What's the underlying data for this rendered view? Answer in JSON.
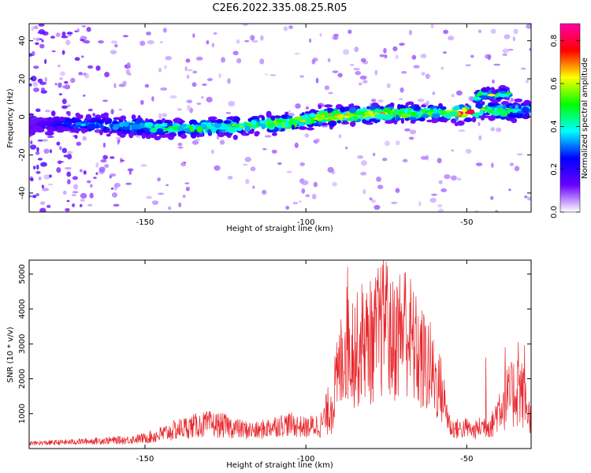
{
  "figure": {
    "title": "C2E6.2022.335.08.25.R05"
  },
  "chart_data": [
    {
      "type": "heatmap",
      "xlabel": "Height of straight line (km)",
      "ylabel": "Frequency (Hz)",
      "xlim": [
        -186,
        -30
      ],
      "ylim": [
        -50,
        49
      ],
      "xticks": [
        -150,
        -100,
        -50
      ],
      "yticks": [
        -40,
        -20,
        0,
        20,
        40
      ],
      "colorbar": {
        "label": "Normalized spectral amplitude",
        "range": [
          0,
          0.88
        ],
        "ticks": [
          0.0,
          0.2,
          0.4,
          0.6,
          0.8
        ],
        "colors": [
          "#ffffff",
          "#6a00ff",
          "#0000ff",
          "#00ffff",
          "#00ff00",
          "#ffff00",
          "#ff0000",
          "#ff00aa"
        ]
      },
      "ridge": {
        "x": [
          -186,
          -175,
          -165,
          -155,
          -145,
          -135,
          -125,
          -115,
          -105,
          -95,
          -85,
          -75,
          -65,
          -60,
          -55,
          -50,
          -45,
          -40,
          -35,
          -30
        ],
        "center_hz": [
          -4,
          -4,
          -4,
          -5,
          -6,
          -6,
          -5,
          -4,
          -3,
          0,
          1,
          2,
          2,
          2,
          2,
          2,
          4,
          3,
          3,
          4
        ],
        "peak_amplitude": [
          0.15,
          0.3,
          0.35,
          0.45,
          0.45,
          0.5,
          0.55,
          0.5,
          0.6,
          0.7,
          0.6,
          0.65,
          0.6,
          0.5,
          0.6,
          0.85,
          0.5,
          0.55,
          0.45,
          0.4
        ]
      },
      "upper_branch": {
        "x": [
          -47,
          -45,
          -43,
          -41,
          -39,
          -37
        ],
        "center_hz": [
          10,
          12,
          12,
          11,
          12,
          12
        ],
        "peak_amplitude": [
          0.5,
          0.55,
          0.6,
          0.55,
          0.5,
          0.45
        ]
      }
    },
    {
      "type": "line",
      "xlabel": "Height of straight line (km)",
      "ylabel": "SNR (10 * v/v)",
      "xlim": [
        -186,
        -30
      ],
      "ylim": [
        0,
        5400
      ],
      "xticks": [
        -150,
        -100,
        -50
      ],
      "yticks": [
        1000,
        2000,
        3000,
        4000,
        5000
      ],
      "line_color": "#e8262b",
      "series": [
        {
          "x": [
            -186,
            -175,
            -165,
            -155,
            -150,
            -145,
            -140,
            -135,
            -130,
            -125,
            -120,
            -115,
            -110,
            -105,
            -100,
            -95,
            -92,
            -90,
            -88,
            -86,
            -84,
            -82,
            -80,
            -78,
            -76,
            -75,
            -74,
            -72,
            -70,
            -68,
            -66,
            -64,
            -62,
            -60,
            -58,
            -55,
            -52,
            -50,
            -48,
            -45,
            -42,
            -40,
            -38,
            -36,
            -34,
            -32,
            -30
          ],
          "y": [
            150,
            180,
            220,
            250,
            300,
            400,
            550,
            650,
            700,
            650,
            550,
            500,
            650,
            700,
            600,
            700,
            1300,
            2000,
            3000,
            3000,
            2800,
            3200,
            2800,
            3300,
            3500,
            4200,
            3000,
            3200,
            3500,
            3300,
            2800,
            2500,
            2400,
            2000,
            1700,
            600,
            550,
            600,
            500,
            650,
            700,
            1200,
            1400,
            1500,
            1800,
            1400,
            800
          ],
          "amplitude": [
            60,
            80,
            100,
            120,
            150,
            250,
            300,
            350,
            380,
            350,
            280,
            260,
            320,
            350,
            300,
            400,
            900,
            1300,
            1700,
            1800,
            1700,
            1800,
            1600,
            1900,
            2100,
            1600,
            1800,
            1900,
            2000,
            1900,
            1700,
            1600,
            1500,
            1200,
            1000,
            300,
            300,
            300,
            250,
            350,
            400,
            700,
            900,
            1000,
            1200,
            900,
            400
          ],
          "spikes": [
            {
              "x": -89,
              "y": 3300
            },
            {
              "x": -87,
              "y": 5200
            },
            {
              "x": -80,
              "y": 4800
            },
            {
              "x": -75,
              "y": 5350
            },
            {
              "x": -69,
              "y": 5050
            },
            {
              "x": -66,
              "y": 3750
            },
            {
              "x": -44,
              "y": 2600
            },
            {
              "x": -38,
              "y": 2900
            },
            {
              "x": -34,
              "y": 3050
            },
            {
              "x": -32,
              "y": 2950
            }
          ]
        }
      ]
    }
  ]
}
